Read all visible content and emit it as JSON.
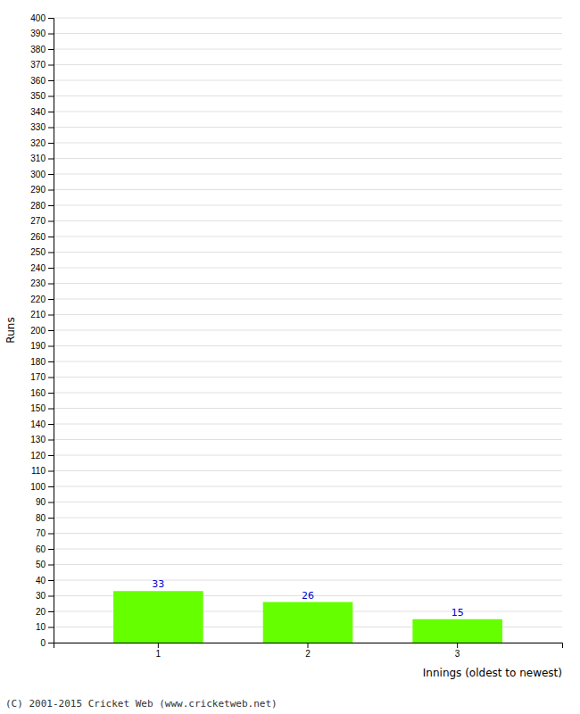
{
  "chart_data": {
    "type": "bar",
    "categories": [
      "1",
      "2",
      "3"
    ],
    "values": [
      33,
      26,
      15
    ],
    "color": "#66ff00",
    "xlabel": "Innings (oldest to newest)",
    "ylabel": "Runs",
    "annotations": [
      "(C) 2001-2015 Cricket Web (www.cricketweb.net)"
    ],
    "ylim": [
      0,
      400
    ],
    "yticks": [
      0,
      10,
      20,
      30,
      40,
      50,
      60,
      70,
      80,
      90,
      100,
      110,
      120,
      130,
      140,
      150,
      160,
      170,
      180,
      190,
      200,
      210,
      220,
      230,
      240,
      250,
      260,
      270,
      280,
      290,
      300,
      310,
      320,
      330,
      340,
      350,
      360,
      370,
      380,
      390,
      400
    ],
    "grid": true,
    "data_labels": true
  }
}
